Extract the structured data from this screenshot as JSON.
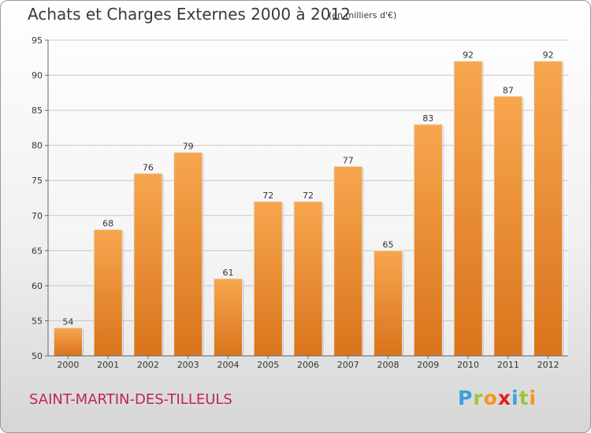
{
  "header": {
    "title": "Achats et Charges Externes 2000 à 2012",
    "unit": "(en milliers d'€)"
  },
  "footer": {
    "city": "SAINT-MARTIN-DES-TILLEULS",
    "logo_letters": [
      "P",
      "r",
      "o",
      "x",
      "i",
      "t",
      "i"
    ],
    "logo_colors": [
      "#3aa0d8",
      "#9bc53d",
      "#f7941d",
      "#e2231a",
      "#3aa0d8",
      "#9bc53d",
      "#f7941d"
    ]
  },
  "chart_data": {
    "type": "bar",
    "title": "Achats et Charges Externes 2000 à 2012",
    "xlabel": "",
    "ylabel": "",
    "categories": [
      "2000",
      "2001",
      "2002",
      "2003",
      "2004",
      "2005",
      "2006",
      "2007",
      "2008",
      "2009",
      "2010",
      "2011",
      "2012"
    ],
    "values": [
      54,
      68,
      76,
      79,
      61,
      72,
      72,
      77,
      65,
      83,
      92,
      87,
      92
    ],
    "ylim": [
      50,
      95
    ],
    "yticks": [
      50,
      55,
      60,
      65,
      70,
      75,
      80,
      85,
      90,
      95
    ],
    "grid": true,
    "bar_color_top": "#f7a64e",
    "bar_color_bottom": "#d9741c",
    "data_labels": true
  }
}
